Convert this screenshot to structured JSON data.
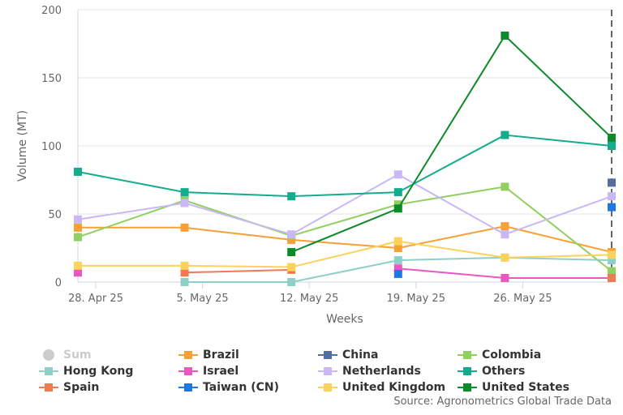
{
  "chart_data": {
    "type": "line",
    "xlabel": "Weeks",
    "ylabel": "Volume (MT)",
    "ylim": [
      0,
      200
    ],
    "yticks": [
      0,
      50,
      100,
      150,
      200
    ],
    "xtick_labels": [
      "28. Apr 25",
      "5. May 25",
      "12. May 25",
      "19. May 25",
      "26. May 25"
    ],
    "x_points": 6,
    "grid": "horizontal",
    "legend_position": "bottom",
    "series": [
      {
        "name": "Sum",
        "color": "#cccccc",
        "marker": "circle",
        "hidden": true,
        "values": [
          null,
          null,
          null,
          null,
          null,
          null
        ]
      },
      {
        "name": "Brazil",
        "color": "#f7a035",
        "marker": "square",
        "values": [
          40,
          40,
          31,
          25,
          41,
          22
        ]
      },
      {
        "name": "China",
        "color": "#4f6f9f",
        "marker": "square",
        "values": [
          null,
          null,
          null,
          null,
          null,
          73
        ]
      },
      {
        "name": "Colombia",
        "color": "#91cf60",
        "marker": "square",
        "values": [
          33,
          60,
          34,
          57,
          70,
          8
        ]
      },
      {
        "name": "Hong Kong",
        "color": "#8ecfc9",
        "marker": "square",
        "values": [
          null,
          0,
          0,
          16,
          18,
          16
        ]
      },
      {
        "name": "Israel",
        "color": "#e858c0",
        "marker": "square",
        "values": [
          7,
          null,
          null,
          10,
          3,
          3
        ]
      },
      {
        "name": "Netherlands",
        "color": "#c9b8f5",
        "marker": "square",
        "values": [
          46,
          58,
          35,
          79,
          35,
          63
        ]
      },
      {
        "name": "Others",
        "color": "#13ac8c",
        "marker": "square",
        "values": [
          81,
          66,
          63,
          66,
          108,
          100
        ]
      },
      {
        "name": "Spain",
        "color": "#f07a52",
        "marker": "square",
        "values": [
          null,
          7,
          9,
          null,
          null,
          3
        ]
      },
      {
        "name": "Taiwan (CN)",
        "color": "#1e78e3",
        "marker": "square",
        "values": [
          null,
          null,
          null,
          6,
          null,
          55
        ]
      },
      {
        "name": "United Kingdom",
        "color": "#fcd25a",
        "marker": "square",
        "values": [
          12,
          12,
          11,
          30,
          18,
          20
        ]
      },
      {
        "name": "United States",
        "color": "#0d8a2a",
        "marker": "square",
        "values": [
          null,
          null,
          22,
          54,
          181,
          106
        ]
      }
    ],
    "source": "Source: Agronometrics Global Trade Data"
  }
}
